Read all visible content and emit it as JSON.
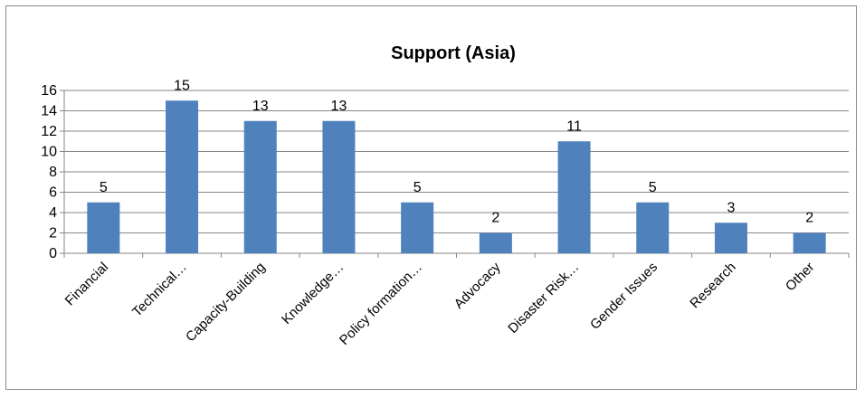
{
  "chart_data": {
    "type": "bar",
    "title": "Support (Asia)",
    "categories": [
      "Financial",
      "Technical…",
      "Capacity-Building",
      "Knowledge…",
      "Policy formation…",
      "Advocacy",
      "Disaster Risk…",
      "Gender Issues",
      "Research",
      "Other"
    ],
    "values": [
      5,
      15,
      13,
      13,
      5,
      2,
      11,
      5,
      3,
      2
    ],
    "data_labels": [
      "5",
      "15",
      "13",
      "13",
      "5",
      "2",
      "11",
      "5",
      "3",
      "2"
    ],
    "ylim": [
      0,
      16
    ],
    "yticks": [
      "0",
      "2",
      "4",
      "6",
      "8",
      "10",
      "12",
      "14",
      "16"
    ],
    "grid": true,
    "legend": "none",
    "bar_color": "#4f81bd",
    "grid_color": "#868686",
    "axis_color": "#868686"
  }
}
